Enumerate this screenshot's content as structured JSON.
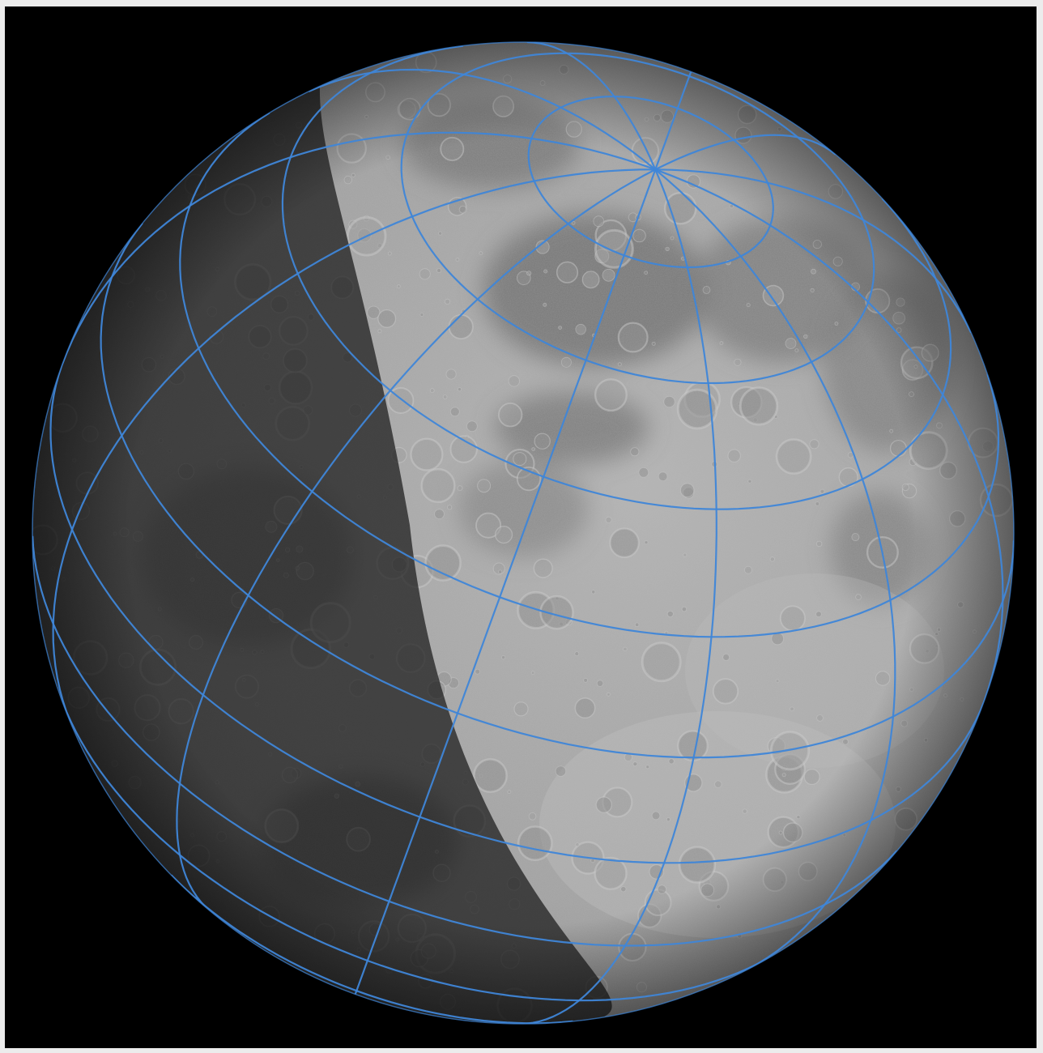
{
  "scene": {
    "subject": "moon-globe",
    "lit_fraction": 0.62,
    "colors": {
      "background": "#000000",
      "frame": "#ececec",
      "graticule": "#3f86d8",
      "surface_lit": "#a9a9a9",
      "surface_dark": "#2f2f2f",
      "mare": "#777777"
    }
  }
}
